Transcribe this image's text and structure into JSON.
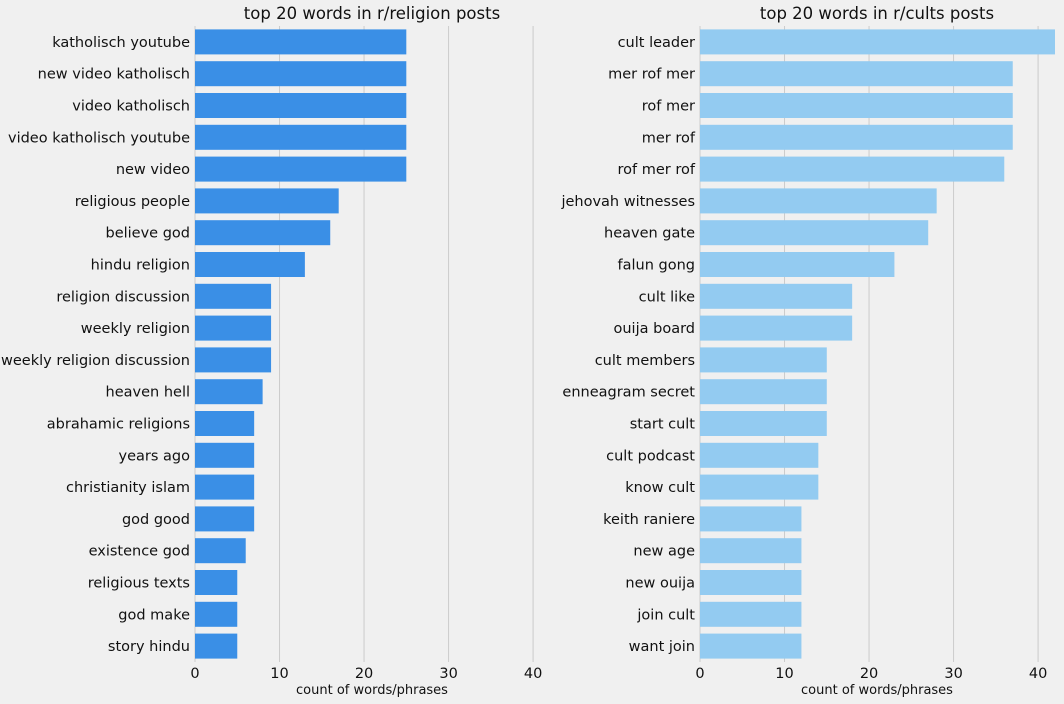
{
  "chart_data": [
    {
      "type": "bar",
      "orientation": "horizontal",
      "title": "top 20 words in r/religion posts",
      "xlabel": "count of words/phrases",
      "ylabel": "",
      "xlim": [
        0,
        42
      ],
      "xticks": [
        0,
        10,
        20,
        30,
        40
      ],
      "grid": "vertical",
      "color": "#3a8fe6",
      "categories": [
        "katholisch youtube",
        "new video katholisch",
        "video katholisch",
        "video katholisch youtube",
        "new video",
        "religious people",
        "believe god",
        "hindu religion",
        "religion discussion",
        "weekly religion",
        "weekly religion discussion",
        "heaven hell",
        "abrahamic religions",
        "years ago",
        "christianity islam",
        "god good",
        "existence god",
        "religious texts",
        "god make",
        "story hindu"
      ],
      "values": [
        25,
        25,
        25,
        25,
        25,
        17,
        16,
        13,
        9,
        9,
        9,
        8,
        7,
        7,
        7,
        7,
        6,
        5,
        5,
        5
      ]
    },
    {
      "type": "bar",
      "orientation": "horizontal",
      "title": "top 20 words in r/cults posts",
      "xlabel": "count of words/phrases",
      "ylabel": "",
      "xlim": [
        0,
        42
      ],
      "xticks": [
        0,
        10,
        20,
        30,
        40
      ],
      "grid": "vertical",
      "color": "#93cbf1",
      "categories": [
        "cult leader",
        "mer rof mer",
        "rof mer",
        "mer rof",
        "rof mer rof",
        "jehovah witnesses",
        "heaven gate",
        "falun gong",
        "cult like",
        "ouija board",
        "cult members",
        "enneagram secret",
        "start cult",
        "cult podcast",
        "know cult",
        "keith raniere",
        "new age",
        "new ouija",
        "join cult",
        "want join"
      ],
      "values": [
        42,
        37,
        37,
        37,
        36,
        28,
        27,
        23,
        18,
        18,
        15,
        15,
        15,
        14,
        14,
        12,
        12,
        12,
        12,
        12
      ]
    }
  ]
}
